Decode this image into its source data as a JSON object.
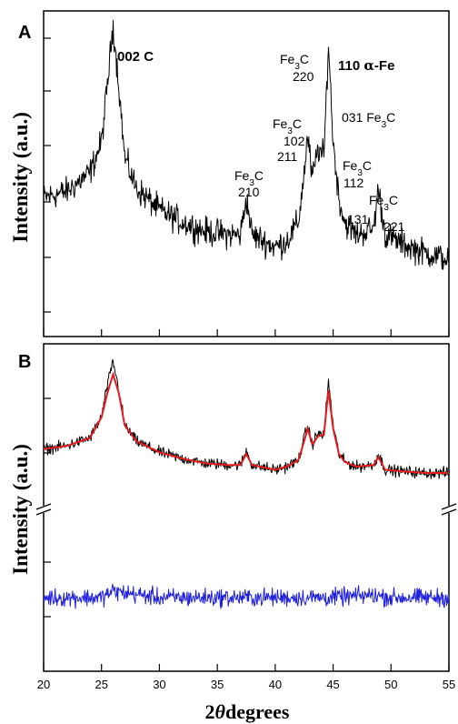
{
  "chart_data": [
    {
      "panel": "A",
      "type": "line",
      "xlabel": "2θ degrees",
      "ylabel": "Intensity (a.u.)",
      "xlim": [
        20,
        55
      ],
      "xticks": [
        20,
        25,
        30,
        35,
        40,
        45,
        50,
        55
      ],
      "colors": {
        "pattern": "#000000"
      },
      "series": [
        {
          "x": [
            20,
            22,
            24,
            25,
            25.5,
            26,
            26.5,
            27,
            28,
            30,
            32,
            34,
            36,
            37,
            37.5,
            38,
            40,
            41,
            42,
            42.5,
            42.8,
            43.2,
            43.7,
            44.2,
            44.6,
            45,
            45.5,
            46,
            47,
            48.5,
            48.9,
            49.5,
            51,
            53,
            55
          ],
          "y": [
            0.42,
            0.44,
            0.5,
            0.6,
            0.78,
            0.98,
            0.78,
            0.55,
            0.45,
            0.38,
            0.34,
            0.31,
            0.3,
            0.3,
            0.42,
            0.3,
            0.26,
            0.28,
            0.34,
            0.5,
            0.62,
            0.48,
            0.58,
            0.55,
            0.92,
            0.6,
            0.42,
            0.34,
            0.3,
            0.32,
            0.45,
            0.3,
            0.27,
            0.24,
            0.22
          ]
        }
      ],
      "annotations": [
        {
          "text": "002 C",
          "x": 26.5
        },
        {
          "text": "Fe3C 210",
          "x": 37.5
        },
        {
          "text": "Fe3C 102 211",
          "x": 42.6
        },
        {
          "text": "Fe3C 220",
          "x": 44.0
        },
        {
          "text": "110 α-Fe",
          "x": 45.3
        },
        {
          "text": "031 Fe3C",
          "x": 45.5
        },
        {
          "text": "Fe3C 112 131",
          "x": 45.8
        },
        {
          "text": "Fe3C 221",
          "x": 48.9
        }
      ],
      "labels": {
        "l002": "002 C",
        "fe3c": "Fe",
        "sub3": "3",
        "c": "C",
        "p210": "210",
        "p102": "102",
        "p211": "211",
        "p220": "220",
        "p110_prefix": "110 ",
        "alpha": "α",
        "fe_suffix": "-Fe",
        "p031_prefix": "031 ",
        "p112": "112",
        "p131": "131",
        "p221": "221"
      }
    },
    {
      "panel": "B",
      "type": "line",
      "xlabel": "2θ degrees",
      "ylabel": "Intensity (a.u.)",
      "xlim": [
        20,
        55
      ],
      "xticks": [
        20,
        25,
        30,
        35,
        40,
        45,
        50,
        55
      ],
      "colors": {
        "observed": "#000000",
        "fit": "#e41a1c",
        "difference": "#1f1fe0"
      },
      "series": [
        {
          "x": [
            20,
            22,
            24,
            25,
            25.5,
            26,
            26.5,
            27,
            28,
            30,
            32,
            34,
            36,
            37,
            37.5,
            38,
            40,
            41,
            42,
            42.5,
            42.8,
            43.2,
            43.7,
            44.2,
            44.6,
            45,
            45.5,
            46,
            47,
            48.5,
            48.9,
            49.5,
            51,
            53,
            55
          ],
          "y": [
            0.35,
            0.37,
            0.42,
            0.55,
            0.75,
            0.9,
            0.72,
            0.5,
            0.4,
            0.33,
            0.29,
            0.26,
            0.25,
            0.25,
            0.34,
            0.25,
            0.22,
            0.24,
            0.28,
            0.42,
            0.5,
            0.38,
            0.45,
            0.44,
            0.78,
            0.5,
            0.32,
            0.27,
            0.24,
            0.25,
            0.32,
            0.22,
            0.21,
            0.2,
            0.2
          ]
        },
        {
          "x": [
            20,
            22,
            24,
            25,
            25.5,
            26,
            26.5,
            27,
            28,
            30,
            32,
            34,
            36,
            37,
            37.5,
            38,
            40,
            41,
            42,
            42.5,
            42.8,
            43.2,
            43.7,
            44.2,
            44.6,
            45,
            45.5,
            46,
            47,
            48.5,
            48.9,
            49.5,
            51,
            53,
            55
          ],
          "y": [
            0.35,
            0.37,
            0.42,
            0.55,
            0.7,
            0.82,
            0.7,
            0.5,
            0.4,
            0.33,
            0.29,
            0.26,
            0.25,
            0.25,
            0.32,
            0.25,
            0.22,
            0.24,
            0.28,
            0.4,
            0.48,
            0.38,
            0.43,
            0.44,
            0.72,
            0.48,
            0.32,
            0.27,
            0.24,
            0.25,
            0.3,
            0.22,
            0.21,
            0.2,
            0.2
          ]
        },
        {
          "x": [
            20,
            25,
            26,
            30,
            35,
            40,
            45,
            48.5,
            50,
            55
          ],
          "y": [
            0,
            0,
            0.05,
            0,
            0,
            0,
            0,
            0.02,
            0,
            0
          ]
        }
      ]
    }
  ],
  "text": {
    "panel_a": "A",
    "panel_b": "B",
    "ylabel": "Intensity (a.u.)",
    "xlabel_2": "2",
    "xlabel_theta": "θ",
    "xlabel_degrees": "degrees"
  }
}
